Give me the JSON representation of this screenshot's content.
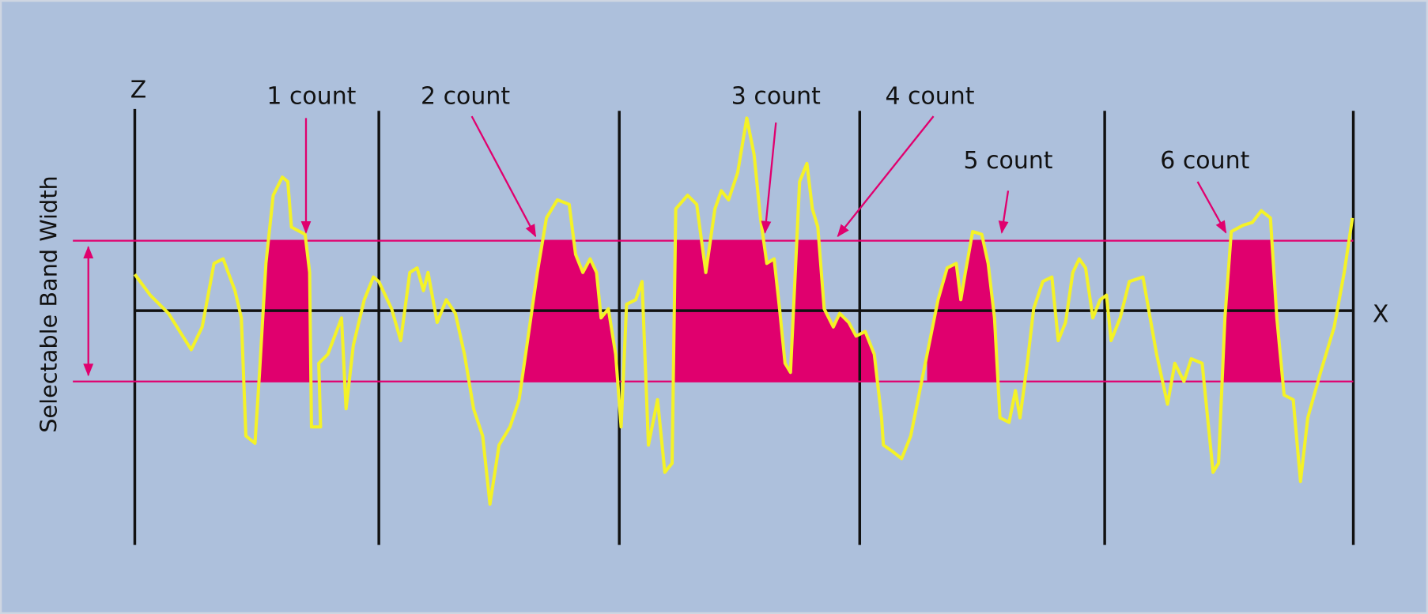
{
  "axes": {
    "z": "Z",
    "x": "X"
  },
  "band_label": "Selectable Band Width",
  "counts": [
    "1 count",
    "2 count",
    "3 count",
    "4 count",
    "5 count",
    "6 count"
  ]
}
